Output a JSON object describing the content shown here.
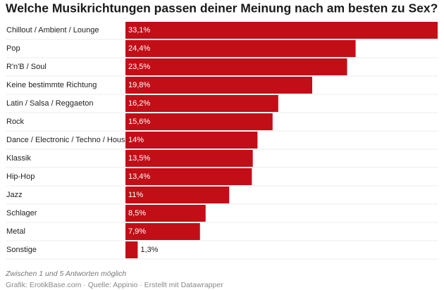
{
  "chart_data": {
    "type": "bar",
    "orientation": "horizontal",
    "title": "Welche Musikrichtungen passen deiner Meinung nach am besten zu Sex?",
    "categories": [
      "Chillout / Ambient / Lounge",
      "Pop",
      "R'n'B / Soul",
      "Keine bestimmte Richtung",
      "Latin / Salsa / Reggaeton",
      "Rock",
      "Dance / Electronic / Techno / House",
      "Klassik",
      "Hip-Hop",
      "Jazz",
      "Schlager",
      "Metal",
      "Sonstige"
    ],
    "values": [
      33.1,
      24.4,
      23.5,
      19.8,
      16.2,
      15.6,
      14,
      13.5,
      13.4,
      11,
      8.5,
      7.9,
      1.3
    ],
    "value_labels": [
      "33,1%",
      "24,4%",
      "23,5%",
      "19,8%",
      "16,2%",
      "15,6%",
      "14%",
      "13,5%",
      "13,4%",
      "11%",
      "8,5%",
      "7,9%",
      "1,3%"
    ],
    "color": "#c20e17",
    "note": "Zwischen 1 und 5 Antworten möglich",
    "source": "Grafik: ErotikBase.com · Quelle: Appinio · Erstellt mit Datawrapper"
  }
}
